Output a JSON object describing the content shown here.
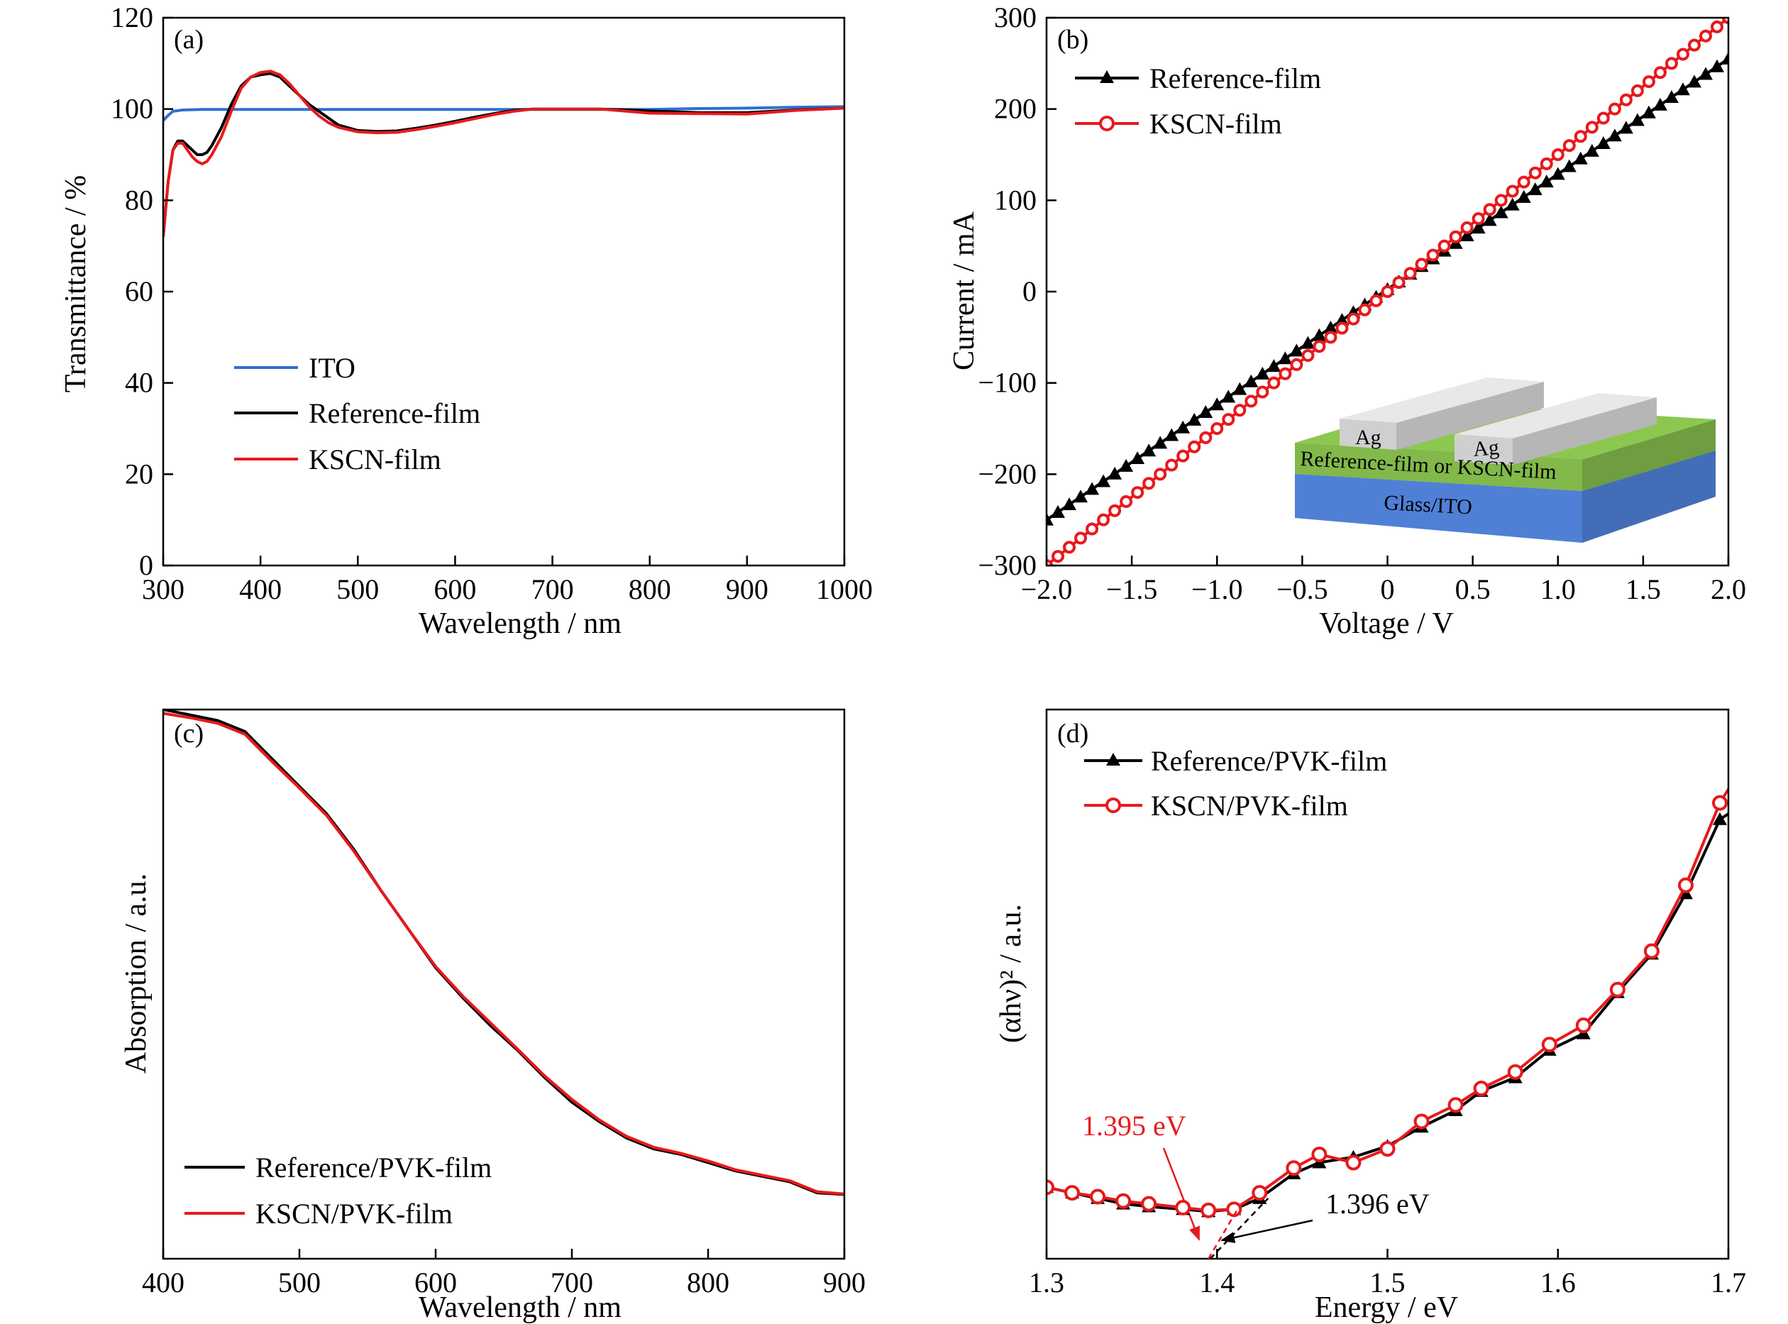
{
  "chart_data": [
    {
      "panel": "(a)",
      "type": "line",
      "xlabel": "Wavelength / nm",
      "ylabel": "Transmittance / %",
      "xlim": [
        300,
        1000
      ],
      "ylim": [
        0,
        120
      ],
      "xticks": [
        "300",
        "400",
        "500",
        "600",
        "700",
        "800",
        "900",
        "1000"
      ],
      "yticks": [
        "0",
        "20",
        "40",
        "60",
        "80",
        "100",
        "120"
      ],
      "legend_position": "center-left",
      "series": [
        {
          "name": "ITO",
          "color": "#2f6fd0",
          "x": [
            300,
            305,
            310,
            320,
            340,
            360,
            400,
            500,
            600,
            700,
            800,
            850,
            900,
            950,
            1000
          ],
          "y": [
            97.5,
            98.6,
            99.5,
            99.8,
            99.9,
            99.9,
            99.9,
            99.9,
            99.9,
            99.9,
            99.9,
            100.1,
            100.2,
            100.4,
            100.5
          ]
        },
        {
          "name": "Reference-film",
          "color": "#000000",
          "x": [
            300,
            305,
            310,
            315,
            320,
            325,
            330,
            335,
            340,
            345,
            350,
            360,
            370,
            380,
            390,
            400,
            410,
            420,
            430,
            440,
            450,
            460,
            470,
            480,
            500,
            520,
            540,
            560,
            580,
            600,
            620,
            640,
            660,
            680,
            700,
            750,
            800,
            850,
            900,
            950,
            1000
          ],
          "y": [
            72,
            84,
            91,
            93,
            93,
            92,
            91,
            90,
            90,
            90.5,
            92,
            96,
            101,
            105,
            107,
            107.5,
            107.8,
            107,
            105,
            103,
            101,
            99.5,
            98,
            96.5,
            95.3,
            95.1,
            95.2,
            95.8,
            96.5,
            97.3,
            98.2,
            99,
            99.7,
            100,
            100,
            100,
            99.6,
            99.2,
            99.2,
            99.8,
            100.2
          ]
        },
        {
          "name": "KSCN-film",
          "color": "#e8191c",
          "x": [
            300,
            305,
            310,
            315,
            320,
            325,
            330,
            335,
            340,
            345,
            350,
            360,
            370,
            380,
            390,
            400,
            410,
            420,
            430,
            440,
            450,
            460,
            470,
            480,
            500,
            520,
            540,
            560,
            580,
            600,
            620,
            640,
            660,
            680,
            700,
            750,
            800,
            850,
            900,
            950,
            1000
          ],
          "y": [
            72,
            84,
            91,
            92.5,
            92.5,
            91,
            89.5,
            88.5,
            88,
            88.5,
            90,
            94,
            99.5,
            104.5,
            107,
            108,
            108.3,
            107.5,
            105.5,
            103,
            100.5,
            98.5,
            97,
            96,
            95,
            94.8,
            94.9,
            95.5,
            96.2,
            97,
            97.9,
            98.8,
            99.5,
            100,
            100,
            100,
            99.1,
            99,
            98.9,
            99.7,
            100.2
          ]
        }
      ]
    },
    {
      "panel": "(b)",
      "type": "line",
      "xlabel": "Voltage / V",
      "ylabel": "Current / mA",
      "xlim": [
        -2.0,
        2.0
      ],
      "ylim": [
        -300,
        300
      ],
      "xticks": [
        "−2.0",
        "−1.5",
        "−1.0",
        "−0.5",
        "0",
        "0.5",
        "1.0",
        "1.5",
        "2.0"
      ],
      "yticks": [
        "−300",
        "−200",
        "−100",
        "0",
        "100",
        "200",
        "300"
      ],
      "legend_position": "top-left",
      "series": [
        {
          "name": "Reference-film",
          "color": "#000000",
          "marker": "triangle",
          "x": [
            -2.0,
            2.0
          ],
          "y": [
            -250,
            255
          ]
        },
        {
          "name": "KSCN-film",
          "color": "#e8191c",
          "marker": "circle",
          "x": [
            -2.0,
            2.0
          ],
          "y": [
            -300,
            300
          ]
        }
      ],
      "inset": {
        "electrode_label": "Ag",
        "film_label": "Reference-film or KSCN-film",
        "substrate_label": "Glass/ITO",
        "colors": {
          "electrode": "#cfcfcf",
          "film": "#82b94a",
          "substrate": "#4f80d6"
        }
      }
    },
    {
      "panel": "(c)",
      "type": "line",
      "xlabel": "Wavelength / nm",
      "ylabel": "Absorption / a.u.",
      "xlim": [
        400,
        900
      ],
      "ylim": [
        0,
        1
      ],
      "xticks": [
        "400",
        "500",
        "600",
        "700",
        "800",
        "900"
      ],
      "legend_position": "bottom-left",
      "series": [
        {
          "name": "Reference/PVK-film",
          "color": "#000000",
          "x": [
            400,
            420,
            440,
            460,
            480,
            500,
            520,
            540,
            560,
            580,
            600,
            620,
            640,
            660,
            680,
            700,
            720,
            740,
            760,
            780,
            800,
            820,
            840,
            860,
            880,
            900
          ],
          "y": [
            1.0,
            0.99,
            0.98,
            0.96,
            0.91,
            0.86,
            0.81,
            0.745,
            0.67,
            0.6,
            0.53,
            0.475,
            0.425,
            0.38,
            0.33,
            0.285,
            0.25,
            0.22,
            0.2,
            0.19,
            0.175,
            0.16,
            0.15,
            0.14,
            0.12,
            0.117
          ]
        },
        {
          "name": "KSCN/PVK-film",
          "color": "#e8191c",
          "x": [
            400,
            420,
            440,
            460,
            480,
            500,
            520,
            540,
            560,
            580,
            600,
            620,
            640,
            660,
            680,
            700,
            720,
            740,
            760,
            780,
            800,
            820,
            840,
            860,
            880,
            900
          ],
          "y": [
            0.993,
            0.985,
            0.975,
            0.955,
            0.905,
            0.857,
            0.807,
            0.742,
            0.67,
            0.6,
            0.532,
            0.478,
            0.43,
            0.382,
            0.333,
            0.29,
            0.253,
            0.223,
            0.203,
            0.192,
            0.178,
            0.162,
            0.152,
            0.142,
            0.122,
            0.118
          ]
        }
      ]
    },
    {
      "panel": "(d)",
      "type": "line",
      "xlabel": "Energy / eV",
      "ylabel": "(αhν)² / a.u.",
      "xlim": [
        1.3,
        1.7
      ],
      "ylim": [
        0,
        1
      ],
      "xticks": [
        "1.3",
        "1.4",
        "1.5",
        "1.6",
        "1.7"
      ],
      "legend_position": "top-left",
      "series": [
        {
          "name": "Reference/PVK-film",
          "color": "#000000",
          "marker": "triangle",
          "x": [
            1.3,
            1.315,
            1.33,
            1.345,
            1.36,
            1.38,
            1.395,
            1.41,
            1.425,
            1.445,
            1.46,
            1.48,
            1.5,
            1.52,
            1.54,
            1.555,
            1.575,
            1.595,
            1.615,
            1.635,
            1.655,
            1.675,
            1.695,
            1.705
          ],
          "y": [
            0.13,
            0.12,
            0.11,
            0.1,
            0.095,
            0.09,
            0.086,
            0.09,
            0.11,
            0.155,
            0.175,
            0.185,
            0.205,
            0.24,
            0.27,
            0.305,
            0.33,
            0.38,
            0.41,
            0.485,
            0.555,
            0.665,
            0.8,
            0.82
          ]
        },
        {
          "name": "KSCN/PVK-film",
          "color": "#e8191c",
          "marker": "circle",
          "x": [
            1.3,
            1.315,
            1.33,
            1.345,
            1.36,
            1.38,
            1.395,
            1.41,
            1.425,
            1.445,
            1.46,
            1.48,
            1.5,
            1.52,
            1.54,
            1.555,
            1.575,
            1.595,
            1.615,
            1.635,
            1.655,
            1.675,
            1.695,
            1.705
          ],
          "y": [
            0.13,
            0.12,
            0.113,
            0.105,
            0.1,
            0.093,
            0.088,
            0.09,
            0.12,
            0.165,
            0.19,
            0.175,
            0.2,
            0.25,
            0.28,
            0.31,
            0.34,
            0.39,
            0.425,
            0.49,
            0.56,
            0.68,
            0.83,
            0.88
          ]
        }
      ],
      "annotations": [
        {
          "text": "1.395 eV",
          "color": "#e8191c",
          "value": 1.395
        },
        {
          "text": "1.396 eV",
          "color": "#000000",
          "value": 1.396
        }
      ]
    }
  ]
}
